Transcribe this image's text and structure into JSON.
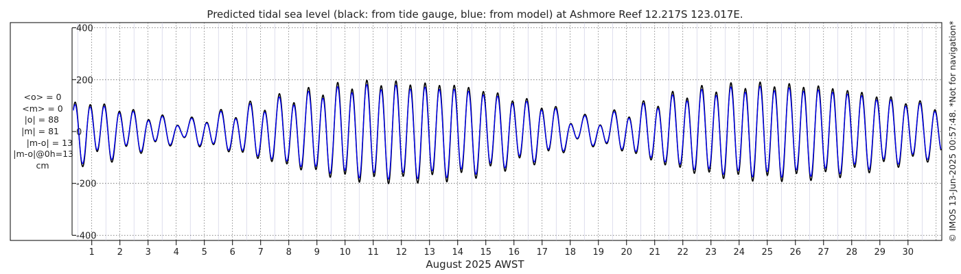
{
  "chart_data": {
    "type": "line",
    "title": "Predicted tidal sea level (black: from tide gauge, blue: from model) at Ashmore Reef 12.217S 123.017E.",
    "xlabel": "August 2025 AWST",
    "ylabel": "",
    "xlim": [
      0.3,
      31.2
    ],
    "ylim": [
      -420,
      420
    ],
    "yticks": [
      400,
      200,
      0,
      -200,
      -400
    ],
    "xticks": [
      1,
      2,
      3,
      4,
      5,
      6,
      7,
      8,
      9,
      10,
      11,
      12,
      13,
      14,
      15,
      16,
      17,
      18,
      19,
      20,
      21,
      22,
      23,
      24,
      25,
      26,
      27,
      28,
      29,
      30
    ],
    "grid": true,
    "legend": "none",
    "amplitude_envelope": {
      "x": [
        0.3,
        1.5,
        2.5,
        3.0,
        3.5,
        4.2,
        5.0,
        6.0,
        7.0,
        8.0,
        9.0,
        10.0,
        11.0,
        12.0,
        13.0,
        14.0,
        15.0,
        16.0,
        17.0,
        17.6,
        18.2,
        19.0,
        20.0,
        21.0,
        22.0,
        23.0,
        24.0,
        25.0,
        26.0,
        27.0,
        28.0,
        29.0,
        30.0,
        31.2
      ],
      "y": [
        110,
        95,
        70,
        55,
        50,
        30,
        50,
        70,
        100,
        125,
        150,
        170,
        180,
        180,
        175,
        170,
        150,
        120,
        100,
        70,
        40,
        45,
        70,
        110,
        140,
        160,
        170,
        175,
        170,
        165,
        150,
        130,
        110,
        90
      ]
    },
    "diurnal_envelope": {
      "x": [
        0.3,
        2.0,
        3.0,
        4.0,
        5.0,
        7.0,
        10.0,
        12.0,
        14.0,
        16.0,
        18.0,
        19.0,
        20.0,
        22.0,
        25.0,
        28.0,
        31.2
      ],
      "y": [
        25,
        25,
        20,
        15,
        20,
        25,
        20,
        15,
        15,
        20,
        25,
        25,
        20,
        20,
        15,
        15,
        20
      ]
    },
    "series": [
      {
        "name": "tide gauge",
        "color": "#000000",
        "amplitude_scale": 1.04,
        "phase_offset": 0.0
      },
      {
        "name": "model",
        "color": "#0000ff",
        "amplitude_scale": 0.95,
        "phase_offset": 0.004
      }
    ],
    "stats": [
      "<o> = 0",
      "<m> = 0",
      "|o| = 88",
      "|m| = 81",
      "|m-o| = 13",
      "|m-o|@0h=13",
      "cm"
    ],
    "copyright": "© IMOS 13-Jun-2025 00:57:48. *Not for navigation*"
  }
}
